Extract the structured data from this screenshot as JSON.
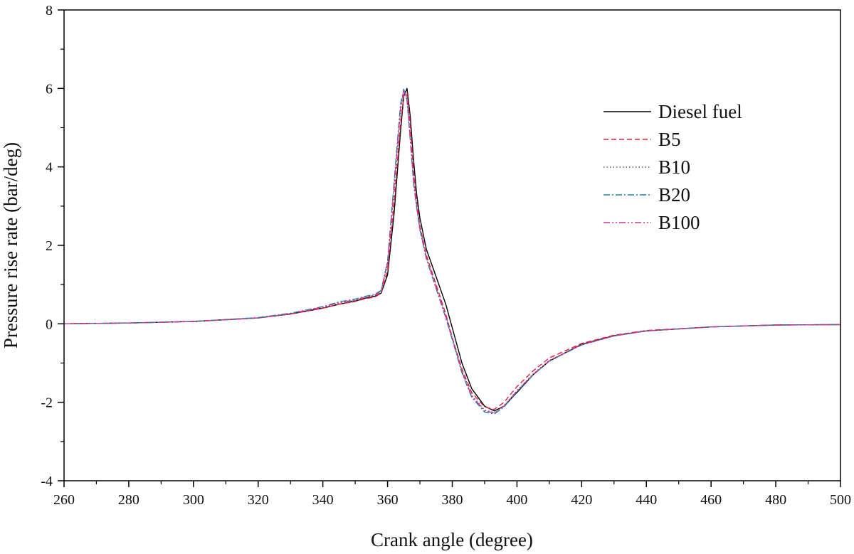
{
  "chart_data": {
    "type": "line",
    "title": "",
    "xlabel": "Crank angle (degree)",
    "ylabel": "Pressure rise rate (bar/deg)",
    "xlim": [
      260,
      500
    ],
    "ylim": [
      -4,
      8
    ],
    "xticks": [
      260,
      280,
      300,
      320,
      340,
      360,
      380,
      400,
      420,
      440,
      460,
      480,
      500
    ],
    "yticks": [
      -4,
      -2,
      0,
      2,
      4,
      6,
      8
    ],
    "grid": false,
    "legend_position": "upper-right",
    "series": [
      {
        "name": "Diesel fuel",
        "color": "#000000",
        "dash": "solid",
        "x": [
          260,
          280,
          300,
          320,
          330,
          340,
          345,
          350,
          353,
          356,
          358,
          360,
          362,
          364,
          365,
          366,
          367,
          368,
          369,
          370,
          372,
          375,
          378,
          380,
          383,
          386,
          390,
          393,
          396,
          400,
          405,
          410,
          420,
          430,
          440,
          460,
          480,
          500
        ],
        "y": [
          0.0,
          0.02,
          0.06,
          0.15,
          0.25,
          0.4,
          0.5,
          0.58,
          0.65,
          0.7,
          0.78,
          1.25,
          2.8,
          4.9,
          5.8,
          6.0,
          5.3,
          4.2,
          3.3,
          2.7,
          1.9,
          1.2,
          0.5,
          -0.1,
          -1.0,
          -1.65,
          -2.1,
          -2.22,
          -2.1,
          -1.75,
          -1.3,
          -0.95,
          -0.52,
          -0.3,
          -0.18,
          -0.08,
          -0.03,
          -0.02
        ]
      },
      {
        "name": "B5",
        "color": "#e8203a",
        "dash": "dashed",
        "x": [
          260,
          280,
          300,
          320,
          330,
          340,
          345,
          350,
          353,
          356,
          358,
          360,
          362,
          364,
          365,
          366,
          367,
          368,
          369,
          370,
          372,
          375,
          378,
          380,
          383,
          386,
          390,
          393,
          396,
          400,
          405,
          410,
          420,
          430,
          440,
          460,
          480,
          500
        ],
        "y": [
          0.0,
          0.02,
          0.06,
          0.15,
          0.25,
          0.4,
          0.5,
          0.57,
          0.64,
          0.68,
          0.78,
          1.35,
          3.1,
          5.1,
          5.8,
          5.9,
          5.1,
          3.9,
          3.1,
          2.5,
          1.75,
          1.0,
          0.25,
          -0.35,
          -1.15,
          -1.75,
          -2.12,
          -2.18,
          -2.0,
          -1.6,
          -1.2,
          -0.87,
          -0.5,
          -0.29,
          -0.17,
          -0.08,
          -0.03,
          -0.02
        ]
      },
      {
        "name": "B10",
        "color": "#555555",
        "dash": "dotted",
        "x": [
          260,
          280,
          300,
          320,
          330,
          340,
          345,
          350,
          353,
          356,
          358,
          360,
          362,
          364,
          365,
          366,
          367,
          368,
          369,
          370,
          372,
          375,
          378,
          380,
          383,
          386,
          390,
          393,
          396,
          400,
          405,
          410,
          420,
          430,
          440,
          460,
          480,
          500
        ],
        "y": [
          0.0,
          0.02,
          0.06,
          0.15,
          0.26,
          0.42,
          0.53,
          0.6,
          0.67,
          0.72,
          0.82,
          1.5,
          3.4,
          5.4,
          5.95,
          5.8,
          4.8,
          3.7,
          3.0,
          2.45,
          1.7,
          0.95,
          0.2,
          -0.35,
          -1.2,
          -1.82,
          -2.2,
          -2.26,
          -2.08,
          -1.7,
          -1.28,
          -0.93,
          -0.53,
          -0.31,
          -0.18,
          -0.08,
          -0.03,
          -0.02
        ]
      },
      {
        "name": "B20",
        "color": "#1a8a9a",
        "dash": "dashdot",
        "x": [
          260,
          280,
          300,
          320,
          330,
          340,
          345,
          350,
          353,
          356,
          358,
          360,
          362,
          364,
          365,
          366,
          367,
          368,
          369,
          370,
          372,
          375,
          378,
          380,
          383,
          386,
          390,
          393,
          396,
          400,
          405,
          410,
          420,
          430,
          440,
          460,
          480,
          500
        ],
        "y": [
          0.0,
          0.02,
          0.06,
          0.16,
          0.27,
          0.44,
          0.56,
          0.63,
          0.7,
          0.75,
          0.85,
          1.6,
          3.6,
          5.6,
          5.98,
          5.7,
          4.7,
          3.6,
          2.95,
          2.4,
          1.65,
          0.9,
          0.15,
          -0.4,
          -1.25,
          -1.87,
          -2.25,
          -2.3,
          -2.12,
          -1.73,
          -1.3,
          -0.95,
          -0.54,
          -0.31,
          -0.18,
          -0.08,
          -0.03,
          -0.02
        ]
      },
      {
        "name": "B100",
        "color": "#cc33aa",
        "dash": "dashdotdot",
        "x": [
          260,
          280,
          300,
          320,
          330,
          340,
          345,
          350,
          353,
          356,
          358,
          360,
          362,
          364,
          365,
          366,
          367,
          368,
          369,
          370,
          372,
          375,
          378,
          380,
          383,
          386,
          390,
          393,
          396,
          400,
          405,
          410,
          420,
          430,
          440,
          460,
          480,
          500
        ],
        "y": [
          0.0,
          0.02,
          0.06,
          0.15,
          0.26,
          0.43,
          0.54,
          0.61,
          0.68,
          0.73,
          0.83,
          1.55,
          3.5,
          5.5,
          5.95,
          5.75,
          4.75,
          3.65,
          2.98,
          2.42,
          1.68,
          0.92,
          0.18,
          -0.38,
          -1.22,
          -1.84,
          -2.22,
          -2.27,
          -2.1,
          -1.71,
          -1.29,
          -0.94,
          -0.53,
          -0.31,
          -0.18,
          -0.08,
          -0.03,
          -0.02
        ]
      }
    ]
  }
}
